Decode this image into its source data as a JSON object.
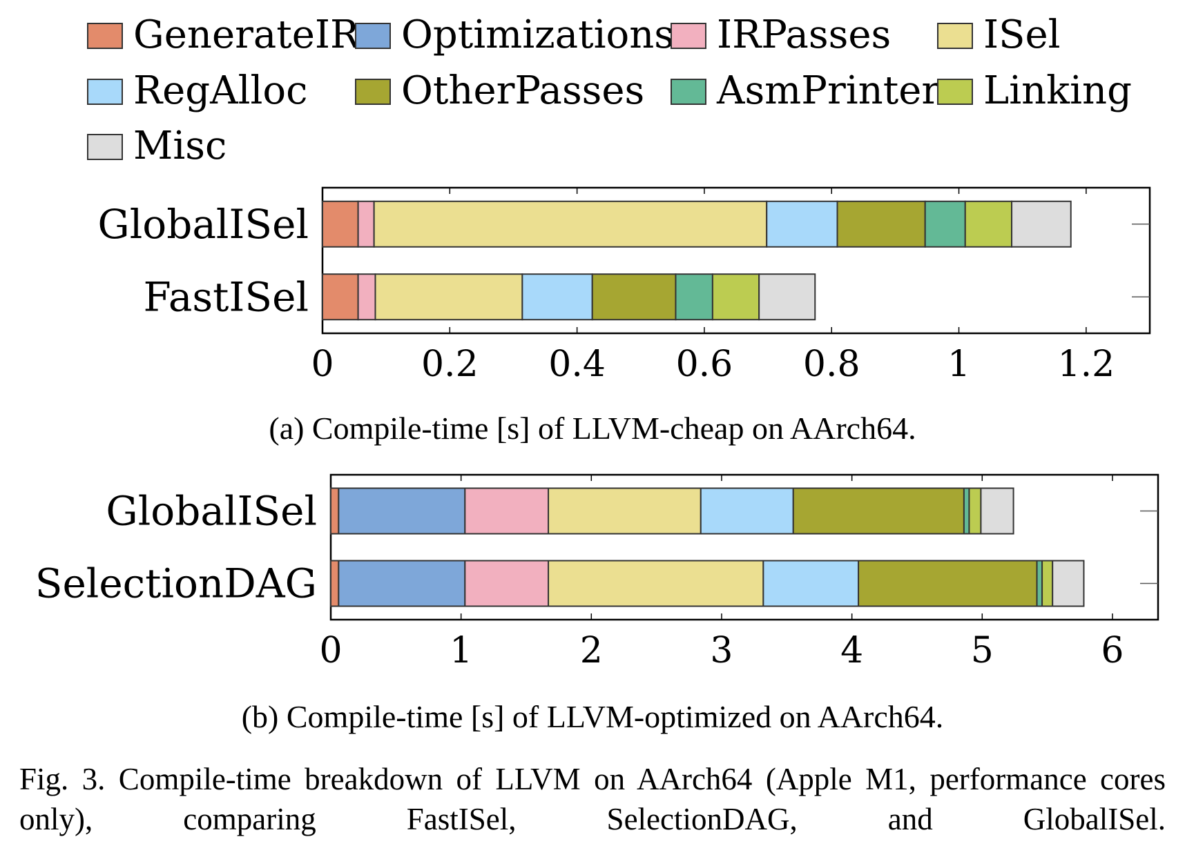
{
  "legend": [
    {
      "name": "GenerateIR",
      "color": "#e38b6b"
    },
    {
      "name": "Optimizations",
      "color": "#7ea7d9"
    },
    {
      "name": "IRPasses",
      "color": "#f2b0bf"
    },
    {
      "name": "ISel",
      "color": "#ebdf91"
    },
    {
      "name": "RegAlloc",
      "color": "#a8d9fa"
    },
    {
      "name": "OtherPasses",
      "color": "#a6a632"
    },
    {
      "name": "AsmPrinter",
      "color": "#63b996"
    },
    {
      "name": "Linking",
      "color": "#bccc51"
    },
    {
      "name": "Misc",
      "color": "#dddddd"
    }
  ],
  "chart_data": [
    {
      "type": "bar",
      "orientation": "horizontal",
      "stacked": true,
      "caption": "(a) Compile-time [s] of LLVM-cheap on AArch64.",
      "categories": [
        "GlobalISel",
        "FastISel"
      ],
      "xlim": [
        0,
        1.3
      ],
      "xticks": [
        0,
        0.2,
        0.4,
        0.6,
        0.8,
        1,
        1.2
      ],
      "xtick_labels": [
        "0",
        "0.2",
        "0.4",
        "0.6",
        "0.8",
        "1",
        "1.2"
      ],
      "series": [
        {
          "name": "GenerateIR",
          "values": [
            0.056,
            0.056
          ]
        },
        {
          "name": "Optimizations",
          "values": [
            0.0,
            0.0
          ]
        },
        {
          "name": "IRPasses",
          "values": [
            0.025,
            0.027
          ]
        },
        {
          "name": "ISel",
          "values": [
            0.617,
            0.231
          ]
        },
        {
          "name": "RegAlloc",
          "values": [
            0.111,
            0.11
          ]
        },
        {
          "name": "OtherPasses",
          "values": [
            0.138,
            0.131
          ]
        },
        {
          "name": "AsmPrinter",
          "values": [
            0.063,
            0.058
          ]
        },
        {
          "name": "Linking",
          "values": [
            0.073,
            0.073
          ]
        },
        {
          "name": "Misc",
          "values": [
            0.093,
            0.088
          ]
        }
      ]
    },
    {
      "type": "bar",
      "orientation": "horizontal",
      "stacked": true,
      "caption": "(b) Compile-time [s] of LLVM-optimized on AArch64.",
      "categories": [
        "GlobalISel",
        "SelectionDAG"
      ],
      "xlim": [
        0,
        6.35
      ],
      "xticks": [
        0,
        1,
        2,
        3,
        4,
        5,
        6
      ],
      "xtick_labels": [
        "0",
        "1",
        "2",
        "3",
        "4",
        "5",
        "6"
      ],
      "series": [
        {
          "name": "GenerateIR",
          "values": [
            0.06,
            0.06
          ]
        },
        {
          "name": "Optimizations",
          "values": [
            0.97,
            0.97
          ]
        },
        {
          "name": "IRPasses",
          "values": [
            0.64,
            0.64
          ]
        },
        {
          "name": "ISel",
          "values": [
            1.17,
            1.65
          ]
        },
        {
          "name": "RegAlloc",
          "values": [
            0.71,
            0.73
          ]
        },
        {
          "name": "OtherPasses",
          "values": [
            1.31,
            1.37
          ]
        },
        {
          "name": "AsmPrinter",
          "values": [
            0.04,
            0.04
          ]
        },
        {
          "name": "Linking",
          "values": [
            0.09,
            0.08
          ]
        },
        {
          "name": "Misc",
          "values": [
            0.25,
            0.24
          ]
        }
      ]
    }
  ],
  "figure_caption": "Fig. 3.  Compile-time breakdown of LLVM on AArch64 (Apple M1, performance cores only), comparing FastISel, SelectionDAG, and GlobalISel."
}
